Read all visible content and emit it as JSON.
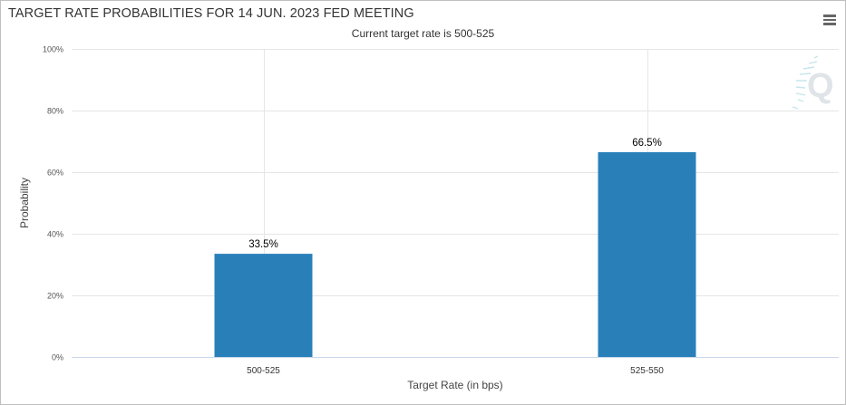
{
  "header": {
    "title": "TARGET RATE PROBABILITIES FOR 14 JUN. 2023 FED MEETING",
    "subtitle": "Current target rate is 500-525",
    "menu_icon": "hamburger-menu-icon",
    "watermark_icon": "q-logo-watermark"
  },
  "colors": {
    "bar": "#2980b9",
    "grid": "#e6e6e6",
    "axis": "#ccd6eb"
  },
  "chart_data": {
    "type": "bar",
    "title": "TARGET RATE PROBABILITIES FOR 14 JUN. 2023 FED MEETING",
    "subtitle": "Current target rate is 500-525",
    "categories": [
      "500-525",
      "525-550"
    ],
    "values": [
      33.5,
      66.5
    ],
    "data_labels": [
      "33.5%",
      "66.5%"
    ],
    "xlabel": "Target Rate (in bps)",
    "ylabel": "Probability",
    "ylim": [
      0,
      100
    ],
    "yticks": [
      0,
      20,
      40,
      60,
      80,
      100
    ],
    "ytick_labels": [
      "0%",
      "20%",
      "40%",
      "60%",
      "80%",
      "100%"
    ],
    "grid": true,
    "legend": "none"
  }
}
